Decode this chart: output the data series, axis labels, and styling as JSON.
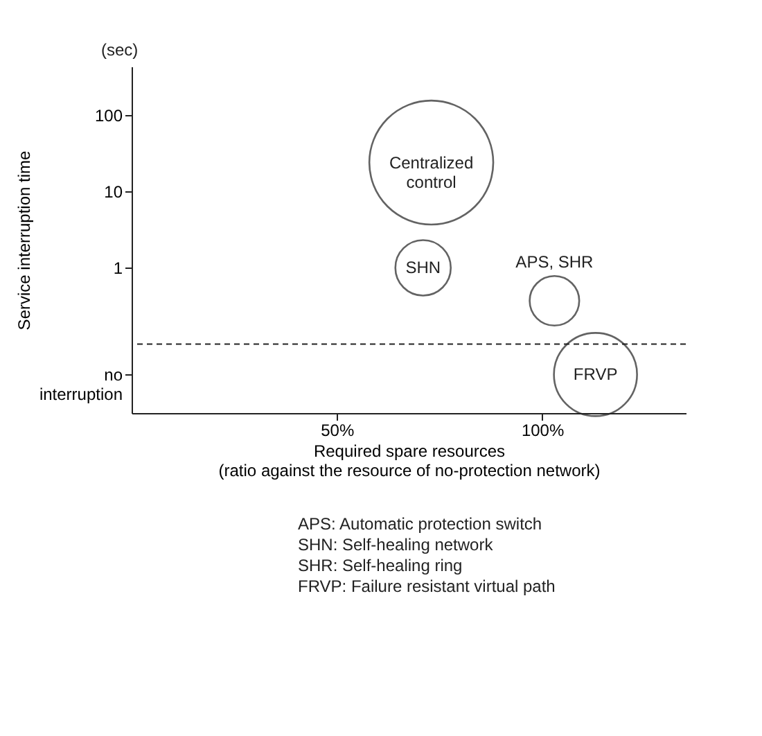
{
  "chart_data": {
    "type": "bubble",
    "ylabel": "Service interruption time",
    "xlabel": "Required spare resources\n(ratio against the resource of no-protection network)",
    "log": "y",
    "grid": false,
    "legend": false,
    "xlim": [
      0,
      135
    ],
    "xticks": [
      {
        "value": 50,
        "label": "50%"
      },
      {
        "value": 100,
        "label": "100%"
      }
    ],
    "ylim": [
      0.0125,
      435
    ],
    "yticks": [
      {
        "value": 0.04,
        "label": "no interruption"
      },
      1,
      10,
      100
    ],
    "ref_lines": [
      {
        "axis": "y",
        "value": 0.1,
        "line_style": "dashed",
        "color": "#222222"
      }
    ],
    "series": [
      {
        "name": "Centralized control",
        "color": "#222222",
        "x": [
          73
        ],
        "values": [
          24
        ],
        "sizes": [
          1
        ]
      },
      {
        "name": "SHN",
        "color": "#222222",
        "x": [
          71
        ],
        "values": [
          1
        ],
        "sizes": [
          0.2
        ]
      },
      {
        "name": "APS, SHR",
        "color": "#222222",
        "x": [
          103
        ],
        "values": [
          0.37
        ],
        "sizes": [
          0.16
        ]
      },
      {
        "name": "FRVP",
        "color": "#222222",
        "x": [
          113
        ],
        "values": [
          0.04
        ],
        "sizes": [
          0.45
        ]
      }
    ],
    "annotations": [
      "(sec)",
      "APS: Automatic protection switch",
      "SHN: Self-healing network",
      "SHR: Self-healing ring",
      "FRVP: Failure resistant virtual path"
    ]
  }
}
